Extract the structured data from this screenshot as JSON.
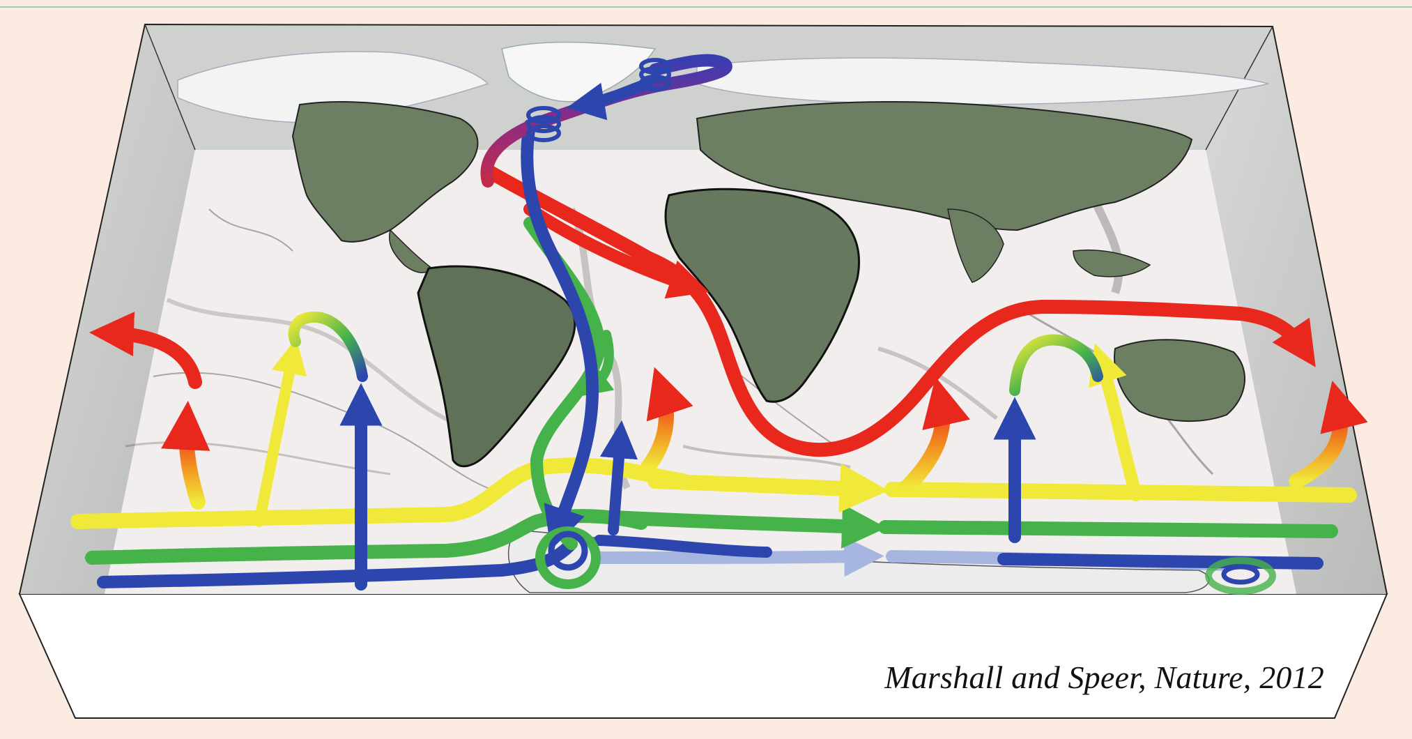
{
  "figure": {
    "caption": "Marshall and Speer, Nature, 2012"
  },
  "colors": {
    "background": "#fcebe0",
    "box_face": "#ffffff",
    "box_wall": "#c9cbc9",
    "land": "#6d7f63",
    "ice": "#f2f3f3",
    "ocean": "#f3eeee",
    "arrow_red": "#e8271d",
    "arrow_yellow": "#f1e93a",
    "arrow_green": "#45b34a",
    "arrow_blue": "#2d46ad",
    "arrow_lightblue": "#a7b6e0",
    "arrow_purple": "#8d2b86"
  }
}
